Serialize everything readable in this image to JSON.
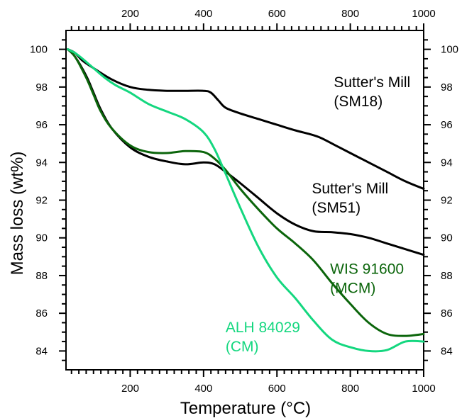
{
  "chart_data": {
    "type": "line",
    "title": "",
    "xlabel": "Temperature (°C)",
    "ylabel": "Mass loss (wt%)",
    "xlim": [
      25,
      1000
    ],
    "ylim": [
      83,
      101
    ],
    "x_ticks": [
      200,
      400,
      600,
      800,
      1000
    ],
    "y_ticks": [
      84,
      86,
      88,
      90,
      92,
      94,
      96,
      98,
      100
    ],
    "x_ticks_top": [
      200,
      400,
      600,
      800,
      1000
    ],
    "y_ticks_right": [
      84,
      86,
      88,
      90,
      92,
      94,
      96,
      98,
      100
    ],
    "grid": false,
    "legend": "none",
    "series": [
      {
        "name": "Sutter's Mill (SM18)",
        "color": "#000000",
        "points": [
          [
            30,
            100
          ],
          [
            50,
            99.8
          ],
          [
            70,
            99.4
          ],
          [
            100,
            99.0
          ],
          [
            150,
            98.4
          ],
          [
            200,
            98.0
          ],
          [
            250,
            97.85
          ],
          [
            300,
            97.8
          ],
          [
            350,
            97.8
          ],
          [
            400,
            97.8
          ],
          [
            420,
            97.7
          ],
          [
            440,
            97.3
          ],
          [
            460,
            96.9
          ],
          [
            500,
            96.6
          ],
          [
            550,
            96.3
          ],
          [
            600,
            96.0
          ],
          [
            650,
            95.7
          ],
          [
            690,
            95.5
          ],
          [
            720,
            95.3
          ],
          [
            760,
            94.9
          ],
          [
            800,
            94.5
          ],
          [
            850,
            94.0
          ],
          [
            900,
            93.5
          ],
          [
            950,
            93.0
          ],
          [
            1000,
            92.6
          ]
        ]
      },
      {
        "name": "Sutter's Mill (SM51)",
        "color": "#000000",
        "points": [
          [
            30,
            100
          ],
          [
            50,
            99.6
          ],
          [
            80,
            98.6
          ],
          [
            100,
            97.7
          ],
          [
            120,
            96.8
          ],
          [
            150,
            95.8
          ],
          [
            200,
            94.8
          ],
          [
            250,
            94.3
          ],
          [
            300,
            94.05
          ],
          [
            350,
            93.9
          ],
          [
            400,
            94.0
          ],
          [
            430,
            93.9
          ],
          [
            460,
            93.5
          ],
          [
            500,
            92.9
          ],
          [
            550,
            92.1
          ],
          [
            600,
            91.3
          ],
          [
            650,
            90.7
          ],
          [
            700,
            90.35
          ],
          [
            750,
            90.3
          ],
          [
            800,
            90.2
          ],
          [
            850,
            90.0
          ],
          [
            900,
            89.7
          ],
          [
            950,
            89.4
          ],
          [
            1000,
            89.1
          ]
        ]
      },
      {
        "name": "WIS 91600 (MCM)",
        "color": "#0b650b",
        "points": [
          [
            30,
            100
          ],
          [
            50,
            99.6
          ],
          [
            80,
            98.5
          ],
          [
            100,
            97.6
          ],
          [
            120,
            96.7
          ],
          [
            150,
            95.8
          ],
          [
            200,
            94.9
          ],
          [
            250,
            94.55
          ],
          [
            300,
            94.5
          ],
          [
            350,
            94.6
          ],
          [
            400,
            94.55
          ],
          [
            430,
            94.2
          ],
          [
            460,
            93.6
          ],
          [
            500,
            92.6
          ],
          [
            550,
            91.5
          ],
          [
            600,
            90.5
          ],
          [
            650,
            89.7
          ],
          [
            700,
            88.8
          ],
          [
            750,
            87.6
          ],
          [
            800,
            86.5
          ],
          [
            850,
            85.5
          ],
          [
            900,
            84.9
          ],
          [
            950,
            84.8
          ],
          [
            1000,
            84.9
          ]
        ]
      },
      {
        "name": "ALH 84029 (CM)",
        "color": "#14d77f",
        "points": [
          [
            30,
            100
          ],
          [
            50,
            99.8
          ],
          [
            70,
            99.5
          ],
          [
            100,
            99.0
          ],
          [
            130,
            98.5
          ],
          [
            160,
            98.1
          ],
          [
            200,
            97.7
          ],
          [
            250,
            97.1
          ],
          [
            300,
            96.7
          ],
          [
            350,
            96.3
          ],
          [
            400,
            95.6
          ],
          [
            430,
            94.7
          ],
          [
            460,
            93.4
          ],
          [
            500,
            91.6
          ],
          [
            550,
            89.5
          ],
          [
            600,
            87.9
          ],
          [
            650,
            86.8
          ],
          [
            700,
            85.6
          ],
          [
            750,
            84.6
          ],
          [
            800,
            84.2
          ],
          [
            850,
            84.0
          ],
          [
            900,
            84.05
          ],
          [
            950,
            84.5
          ],
          [
            1000,
            84.5
          ]
        ]
      }
    ],
    "annotations": [
      {
        "lines": [
          "Sutter's Mill",
          "(SM18)"
        ],
        "color": "#000000",
        "x": 755,
        "y": 98.0
      },
      {
        "lines": [
          "Sutter's Mill",
          "(SM51)"
        ],
        "color": "#000000",
        "x": 695,
        "y": 92.35
      },
      {
        "lines": [
          "WIS 91600",
          "(MCM)"
        ],
        "color": "#0b650b",
        "x": 745,
        "y": 88.1
      },
      {
        "lines": [
          "ALH 84029",
          "(CM)"
        ],
        "color": "#14d77f",
        "x": 460,
        "y": 85.0
      }
    ]
  }
}
